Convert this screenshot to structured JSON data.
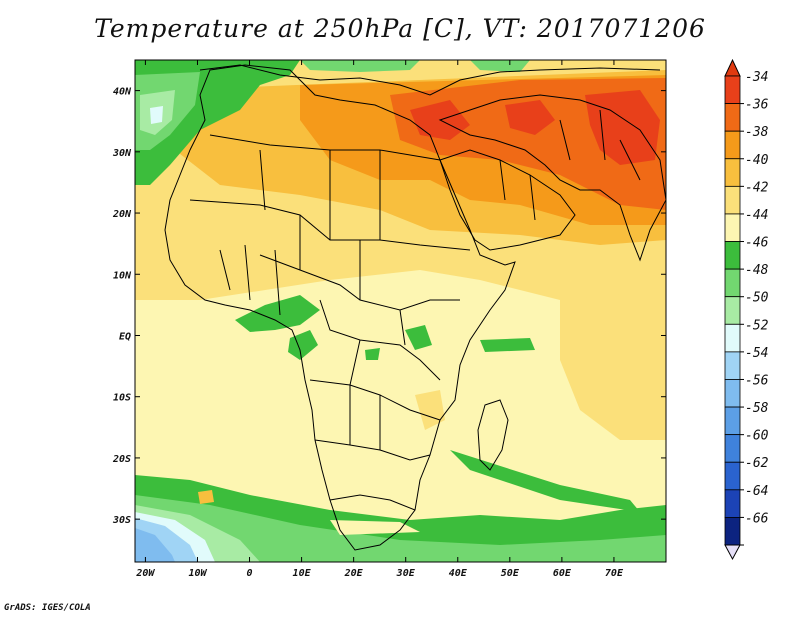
{
  "title": "Temperature at 250hPa [C], VT: 2017071206",
  "credit": "GrADS: IGES/COLA",
  "map": {
    "lon_range": [
      -22,
      80
    ],
    "lat_range": [
      -37,
      45
    ],
    "lon_ticks": [
      "20W",
      "10W",
      "0",
      "10E",
      "20E",
      "30E",
      "40E",
      "50E",
      "60E",
      "70E"
    ],
    "lat_ticks": [
      "40N",
      "30N",
      "20N",
      "10N",
      "EQ",
      "10S",
      "20S",
      "30S"
    ]
  },
  "colorbar": {
    "labels": [
      "-34",
      "-36",
      "-38",
      "-40",
      "-42",
      "-44",
      "-46",
      "-48",
      "-50",
      "-52",
      "-54",
      "-56",
      "-58",
      "-60",
      "-62",
      "-64",
      "-66"
    ],
    "colors": [
      "#e8401a",
      "#f06a16",
      "#f59a1a",
      "#f8bf3e",
      "#fbe07a",
      "#fdf6b2",
      "#3cbd3c",
      "#72d770",
      "#a8eba4",
      "#e1fbfb",
      "#a0d4f5",
      "#7fbcef",
      "#5c9fe6",
      "#3f82dc",
      "#2a63cf",
      "#1c43b6",
      "#0c2380"
    ],
    "top_arrow_color": "#e03a10",
    "bottom_arrow_color": "#e6e0f8"
  }
}
